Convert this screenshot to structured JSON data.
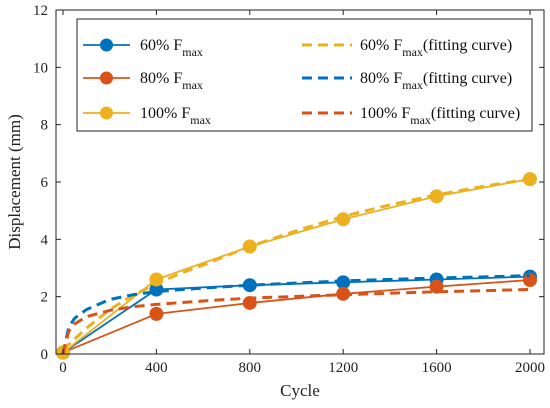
{
  "chart_data": {
    "type": "line",
    "xlabel": "Cycle",
    "ylabel": "Displacement (mm)",
    "xlim": [
      -30,
      2060
    ],
    "ylim": [
      0,
      12
    ],
    "xticks": [
      0,
      400,
      800,
      1200,
      1600,
      2000
    ],
    "yticks": [
      0,
      2,
      4,
      6,
      8,
      10,
      12
    ],
    "xtick_labels": [
      "0",
      "400",
      "800",
      "1200",
      "1600",
      "2000"
    ],
    "ytick_labels": [
      "0",
      "2",
      "4",
      "6",
      "8",
      "10",
      "12"
    ],
    "grid": false,
    "legend_position": "top-left",
    "series": [
      {
        "name": "60% F",
        "name_sub": "max",
        "style": "solid-marker",
        "color": "#0072BD",
        "x": [
          0,
          400,
          800,
          1200,
          1600,
          2000
        ],
        "y": [
          0.05,
          2.25,
          2.4,
          2.5,
          2.6,
          2.7
        ]
      },
      {
        "name": "80% F",
        "name_sub": "max",
        "style": "solid-marker",
        "color": "#D95319",
        "x": [
          0,
          400,
          800,
          1200,
          1600,
          2000
        ],
        "y": [
          0.05,
          1.4,
          1.78,
          2.1,
          2.35,
          2.58
        ]
      },
      {
        "name": "100% F",
        "name_sub": "max",
        "style": "solid-marker",
        "color": "#EDB120",
        "x": [
          0,
          400,
          800,
          1200,
          1600,
          2000
        ],
        "y": [
          0.05,
          2.6,
          3.75,
          4.7,
          5.5,
          6.1
        ]
      },
      {
        "name": "60% F",
        "name_sub": "max",
        "name_suffix": "(fitting curve)",
        "style": "dashed",
        "color": "#EDB120",
        "x": [
          0,
          100,
          200,
          300,
          400,
          500,
          600,
          800,
          1000,
          1200,
          1400,
          1600,
          1800,
          2000
        ],
        "y": [
          0.15,
          0.9,
          1.55,
          2.05,
          2.45,
          2.8,
          3.1,
          3.75,
          4.3,
          4.8,
          5.2,
          5.55,
          5.85,
          6.1
        ]
      },
      {
        "name": "80% F",
        "name_sub": "max",
        "name_suffix": "(fitting curve)",
        "style": "dashed",
        "color": "#0072BD",
        "x": [
          0,
          25,
          50,
          100,
          200,
          300,
          400,
          600,
          800,
          1200,
          1600,
          2000
        ],
        "y": [
          0.0,
          0.95,
          1.25,
          1.55,
          1.9,
          2.07,
          2.18,
          2.3,
          2.4,
          2.55,
          2.65,
          2.73
        ]
      },
      {
        "name": "100% F",
        "name_sub": "max",
        "name_suffix": "(fitting curve)",
        "style": "dashed",
        "color": "#D95319",
        "x": [
          0,
          25,
          50,
          100,
          200,
          300,
          400,
          600,
          800,
          1200,
          1600,
          2000
        ],
        "y": [
          0.0,
          0.8,
          1.05,
          1.3,
          1.52,
          1.65,
          1.73,
          1.85,
          1.95,
          2.07,
          2.17,
          2.25
        ]
      }
    ]
  }
}
